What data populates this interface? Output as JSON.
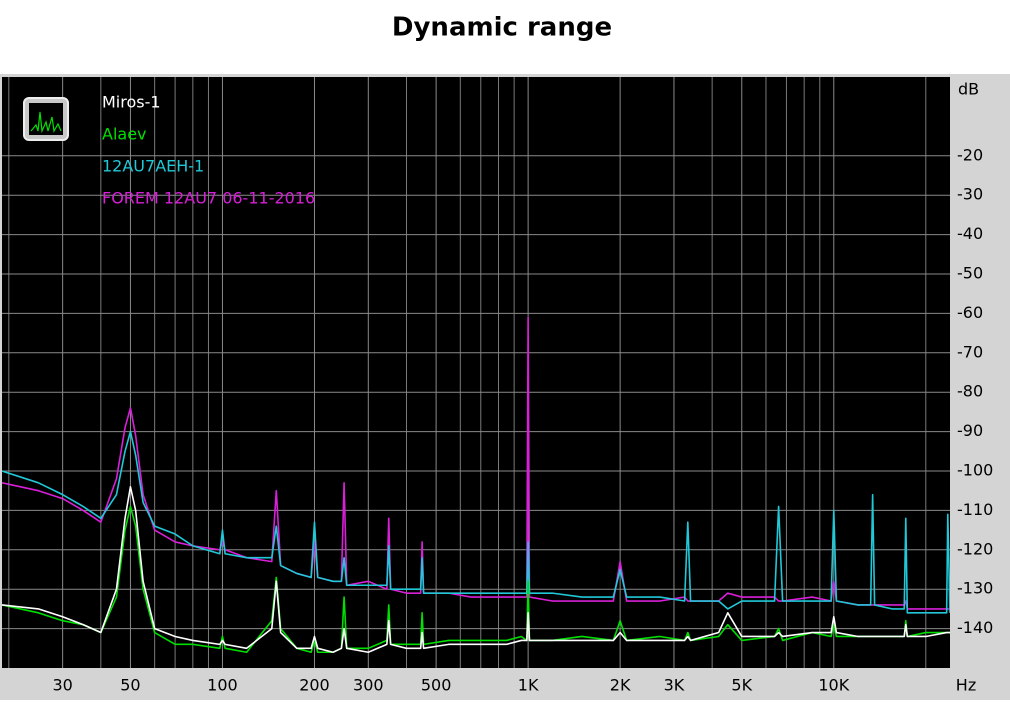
{
  "chart_data": {
    "type": "line",
    "title": "Dynamic range",
    "x_label": "Hz",
    "y_label": "dB",
    "xscale": "log",
    "grid": true,
    "legend": "upper left",
    "background": "#000000",
    "xlim": [
      19,
      24000
    ],
    "ylim": [
      -150,
      0
    ],
    "xticks": [
      30,
      50,
      100,
      200,
      300,
      500,
      {
        "value": 1000,
        "label": "1K"
      },
      {
        "value": 2000,
        "label": "2K"
      },
      {
        "value": 3000,
        "label": "3K"
      },
      {
        "value": 5000,
        "label": "5K"
      },
      {
        "value": 10000,
        "label": "10K"
      }
    ],
    "yticks": [
      -20,
      -30,
      -40,
      -50,
      -60,
      -70,
      -80,
      -90,
      -100,
      -110,
      -120,
      -130,
      -140
    ],
    "x": [
      19,
      25,
      30,
      35,
      40,
      45,
      48,
      50,
      52,
      55,
      60,
      70,
      80,
      98,
      100,
      102,
      120,
      145,
      150,
      155,
      175,
      195,
      200,
      205,
      230,
      245,
      250,
      255,
      300,
      345,
      350,
      355,
      400,
      445,
      450,
      455,
      550,
      650,
      750,
      850,
      950,
      990,
      1000,
      1010,
      1200,
      1500,
      1900,
      2000,
      2100,
      2700,
      3250,
      3330,
      3400,
      4200,
      4500,
      5000,
      6400,
      6600,
      6800,
      8500,
      9800,
      10000,
      10200,
      12000,
      13200,
      13400,
      13600,
      15500,
      17000,
      17200,
      17400,
      20000,
      23400,
      23600,
      24000
    ],
    "series": [
      {
        "name": "Miros-1",
        "color": "#ffffff",
        "values": [
          -134,
          -135,
          -137,
          -139,
          -141,
          -130,
          -112,
          -104,
          -110,
          -128,
          -140,
          -142,
          -143,
          -144,
          -143,
          -144,
          -145,
          -140,
          -128,
          -141,
          -145,
          -145,
          -142,
          -145,
          -146,
          -145,
          -140,
          -145,
          -146,
          -144,
          -138,
          -144,
          -145,
          -145,
          -141,
          -145,
          -144,
          -144,
          -144,
          -144,
          -143,
          -143,
          -136,
          -143,
          -143,
          -143,
          -143,
          -141,
          -143,
          -143,
          -143,
          -142,
          -143,
          -141,
          -136,
          -142,
          -142,
          -141,
          -142,
          -141,
          -141,
          -137,
          -141,
          -142,
          -142,
          -142,
          -142,
          -142,
          -142,
          -139,
          -142,
          -142,
          -141,
          -141,
          -141
        ]
      },
      {
        "name": "Alaev",
        "color": "#00e000",
        "values": [
          -134,
          -136,
          -138,
          -139,
          -141,
          -132,
          -115,
          -109,
          -114,
          -130,
          -141,
          -144,
          -144,
          -145,
          -142,
          -145,
          -146,
          -138,
          -127,
          -140,
          -145,
          -146,
          -143,
          -146,
          -146,
          -145,
          -132,
          -145,
          -145,
          -143,
          -134,
          -144,
          -144,
          -144,
          -136,
          -144,
          -143,
          -143,
          -143,
          -143,
          -142,
          -143,
          -128,
          -143,
          -143,
          -142,
          -143,
          -138,
          -143,
          -142,
          -143,
          -141,
          -143,
          -142,
          -139,
          -143,
          -142,
          -140,
          -143,
          -141,
          -142,
          -139,
          -142,
          -142,
          -142,
          -142,
          -142,
          -142,
          -142,
          -138,
          -142,
          -141,
          -141,
          -141,
          -141
        ]
      },
      {
        "name": "12AU7AEH-1",
        "color": "#20c8d8",
        "values": [
          -100,
          -103,
          -106,
          -109,
          -112,
          -106,
          -95,
          -90,
          -96,
          -108,
          -114,
          -116,
          -119,
          -121,
          -115,
          -121,
          -122,
          -122,
          -114,
          -124,
          -126,
          -127,
          -113,
          -127,
          -128,
          -128,
          -122,
          -129,
          -129,
          -129,
          -119,
          -130,
          -130,
          -130,
          -122,
          -131,
          -131,
          -131,
          -131,
          -131,
          -131,
          -131,
          -118,
          -131,
          -131,
          -132,
          -132,
          -125,
          -132,
          -132,
          -133,
          -113,
          -133,
          -133,
          -135,
          -133,
          -133,
          -109,
          -133,
          -133,
          -133,
          -110,
          -133,
          -134,
          -134,
          -106,
          -134,
          -135,
          -135,
          -112,
          -136,
          -136,
          -136,
          -111,
          -136
        ]
      },
      {
        "name": "FOREM 12AU7 06-11-2016",
        "color": "#d820d8",
        "values": [
          -103,
          -105,
          -107,
          -110,
          -113,
          -102,
          -89,
          -84,
          -91,
          -106,
          -115,
          -118,
          -119,
          -120,
          -118,
          -120,
          -122,
          -123,
          -105,
          -124,
          -126,
          -127,
          -118,
          -127,
          -128,
          -128,
          -103,
          -129,
          -128,
          -130,
          -112,
          -130,
          -131,
          -131,
          -118,
          -131,
          -131,
          -132,
          -132,
          -132,
          -132,
          -132,
          -61,
          -132,
          -133,
          -133,
          -133,
          -123,
          -133,
          -133,
          -132,
          -133,
          -133,
          -133,
          -131,
          -132,
          -132,
          -133,
          -133,
          -132,
          -133,
          -128,
          -133,
          -134,
          -134,
          -134,
          -134,
          -134,
          -134,
          -133,
          -135,
          -135,
          -135,
          -135,
          -135
        ]
      }
    ]
  }
}
